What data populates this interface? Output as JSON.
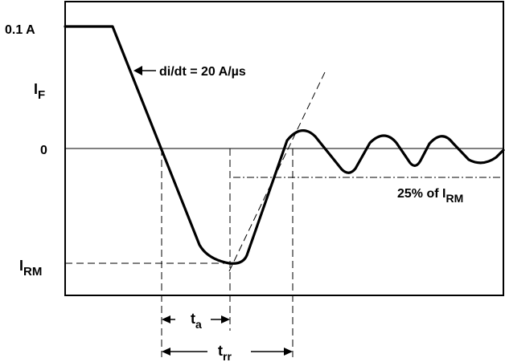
{
  "labels": {
    "y_top": "0.1 A",
    "i_f_main": "I",
    "i_f_sub": "F",
    "zero": "0",
    "i_rm_main": "I",
    "i_rm_sub": "RM",
    "didt": "di/dt = 20 A/µs",
    "pct_main": "25% of I",
    "pct_sub": "RM",
    "ta_main": "t",
    "ta_sub": "a",
    "trr_main": "t",
    "trr_sub": "rr"
  }
}
